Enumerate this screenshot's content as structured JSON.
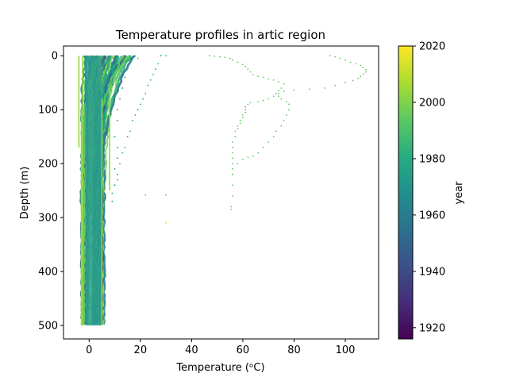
{
  "chart_data": {
    "type": "scatter",
    "title": "Temperature profiles in artic region",
    "xlabel": "Temperature (ᵒC)",
    "ylabel": "Depth (m)",
    "xlim": [
      -10,
      113
    ],
    "ylim": [
      525,
      -18
    ],
    "x_ticks": [
      0,
      20,
      40,
      60,
      80,
      100
    ],
    "y_ticks": [
      0,
      100,
      200,
      300,
      400,
      500
    ],
    "grid": false,
    "colorbar": {
      "label": "year",
      "colormap": "viridis",
      "range": [
        1916,
        2020
      ],
      "ticks": [
        1920,
        1940,
        1960,
        1980,
        2000,
        2020
      ]
    },
    "series": [
      {
        "year": 2003,
        "color": "#5ec962",
        "points": [
          [
            47,
            0
          ],
          [
            49,
            1
          ],
          [
            51,
            2
          ],
          [
            53,
            3
          ],
          [
            55,
            5
          ],
          [
            56,
            8
          ],
          [
            58,
            12
          ],
          [
            60,
            16
          ],
          [
            61,
            20
          ],
          [
            62,
            25
          ],
          [
            63,
            30
          ],
          [
            64,
            35
          ],
          [
            66,
            38
          ],
          [
            68,
            40
          ],
          [
            70,
            43
          ],
          [
            72,
            45
          ],
          [
            74,
            48
          ],
          [
            76,
            52
          ],
          [
            75,
            60
          ],
          [
            74,
            65
          ],
          [
            73,
            70
          ],
          [
            74,
            75
          ],
          [
            75,
            80
          ],
          [
            77,
            85
          ],
          [
            78,
            90
          ],
          [
            78,
            100
          ],
          [
            77,
            110
          ],
          [
            76,
            120
          ],
          [
            75,
            130
          ],
          [
            73,
            140
          ],
          [
            72,
            150
          ],
          [
            70,
            160
          ],
          [
            68,
            170
          ],
          [
            66,
            180
          ],
          [
            64,
            186
          ],
          [
            62,
            188
          ],
          [
            60,
            192
          ],
          [
            58,
            200
          ],
          [
            56,
            210
          ],
          [
            56,
            220
          ],
          [
            56,
            240
          ],
          [
            56,
            260
          ],
          [
            55.5,
            280
          ],
          [
            55.5,
            285
          ]
        ]
      },
      {
        "year": 2003,
        "color": "#5ec962",
        "points": [
          [
            94,
            0
          ],
          [
            96,
            2
          ],
          [
            98,
            5
          ],
          [
            100,
            8
          ],
          [
            102,
            12
          ],
          [
            104,
            15
          ],
          [
            106,
            18
          ],
          [
            107,
            22
          ],
          [
            108,
            26
          ],
          [
            108,
            30
          ],
          [
            107,
            34
          ],
          [
            106,
            38
          ],
          [
            105,
            42
          ],
          [
            103,
            46
          ],
          [
            100,
            50
          ],
          [
            96,
            55
          ],
          [
            92,
            60
          ],
          [
            86,
            62
          ],
          [
            80,
            64
          ],
          [
            76,
            66
          ],
          [
            74,
            70
          ],
          [
            72,
            75
          ],
          [
            70,
            80
          ],
          [
            68,
            83
          ],
          [
            66,
            85
          ],
          [
            63,
            87
          ],
          [
            62,
            90
          ],
          [
            61,
            95
          ],
          [
            61,
            100
          ],
          [
            61,
            105
          ],
          [
            60,
            110
          ],
          [
            60,
            115
          ],
          [
            59,
            120
          ],
          [
            59,
            125
          ],
          [
            58,
            130
          ],
          [
            58,
            135
          ],
          [
            57,
            140
          ],
          [
            57,
            150
          ],
          [
            56,
            160
          ],
          [
            56,
            170
          ],
          [
            56,
            180
          ],
          [
            56,
            190
          ],
          [
            56,
            200
          ],
          [
            56,
            210
          ],
          [
            56,
            220
          ]
        ]
      },
      {
        "year": 1985,
        "color": "#25a784",
        "points": [
          [
            28,
            0
          ],
          [
            27,
            15
          ],
          [
            26,
            25
          ],
          [
            25,
            35
          ],
          [
            24,
            45
          ],
          [
            23,
            55
          ],
          [
            22,
            70
          ],
          [
            21,
            80
          ],
          [
            20,
            90
          ],
          [
            19,
            100
          ],
          [
            18,
            110
          ],
          [
            17,
            120
          ],
          [
            16,
            140
          ],
          [
            15,
            150
          ],
          [
            14,
            170
          ],
          [
            13,
            180
          ],
          [
            12,
            200
          ],
          [
            11,
            220
          ],
          [
            10,
            240
          ]
        ]
      },
      {
        "year": 1995,
        "color": "#4ac16d",
        "points": [
          [
            30,
            0
          ],
          [
            19,
            5
          ],
          [
            17,
            8
          ],
          [
            22,
            258
          ],
          [
            30,
            258
          ]
        ]
      },
      {
        "year": 2012,
        "color": "#bddf26",
        "points": [
          [
            30,
            310
          ]
        ]
      },
      {
        "year": 1972,
        "color": "#21918c",
        "points": [
          [
            15,
            20
          ],
          [
            14,
            40
          ],
          [
            13,
            60
          ],
          [
            12,
            80
          ],
          [
            11,
            100
          ],
          [
            11,
            120
          ],
          [
            10,
            150
          ],
          [
            11,
            170
          ],
          [
            11,
            190
          ],
          [
            10,
            210
          ],
          [
            11,
            230
          ],
          [
            10,
            240
          ],
          [
            9,
            255
          ],
          [
            9,
            270
          ]
        ]
      }
    ],
    "bundle": {
      "description_years": [
        1950,
        2010
      ],
      "depth_range": [
        0,
        500
      ],
      "temperature_range": [
        -5,
        20
      ]
    }
  }
}
